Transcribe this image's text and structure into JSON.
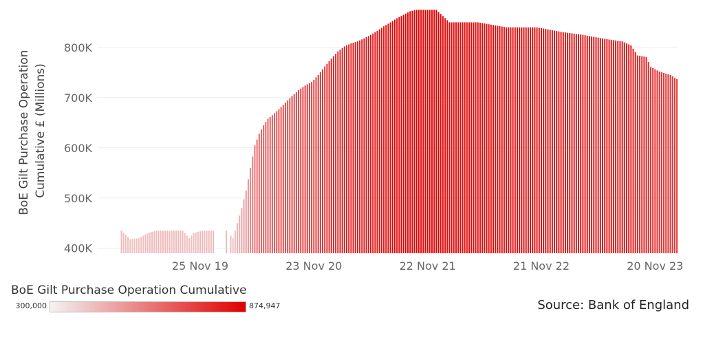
{
  "chart_data": {
    "type": "bar",
    "ylabel_lines": [
      "BoE Gilt Purchase Operation",
      "Cumulative £ (Millions)"
    ],
    "y_ticks": [
      {
        "value": 400000,
        "label": "400K"
      },
      {
        "value": 500000,
        "label": "500K"
      },
      {
        "value": 600000,
        "label": "600K"
      },
      {
        "value": 700000,
        "label": "700K"
      },
      {
        "value": 800000,
        "label": "800K"
      }
    ],
    "ylim": [
      390000,
      878000
    ],
    "x_range": [
      "2019-01-01",
      "2024-01-31"
    ],
    "x_ticks": [
      {
        "date": "2019-11-25",
        "label": "25 Nov 19"
      },
      {
        "date": "2020-11-23",
        "label": "23 Nov 20"
      },
      {
        "date": "2021-11-22",
        "label": "22 Nov 21"
      },
      {
        "date": "2022-11-21",
        "label": "21 Nov 22"
      },
      {
        "date": "2023-11-20",
        "label": "20 Nov 23"
      }
    ],
    "grid": true,
    "color_scale": {
      "min": 300000,
      "max": 874947,
      "min_color": "#f3f3f3",
      "max_color": "#e00000"
    },
    "series": [
      {
        "points": [
          [
            "2019-03-18",
            435000
          ],
          [
            "2019-04-15",
            418000
          ],
          [
            "2019-05-13",
            420000
          ],
          [
            "2019-06-10",
            430000
          ],
          [
            "2019-07-08",
            435000
          ],
          [
            "2019-08-05",
            435000
          ],
          [
            "2019-09-02",
            435000
          ],
          [
            "2019-09-30",
            435000
          ],
          [
            "2019-10-21",
            420000
          ],
          [
            "2019-11-04",
            430000
          ],
          [
            "2019-12-02",
            435000
          ],
          [
            "2020-01-06",
            435000
          ],
          [
            "2020-02-17",
            435000
          ],
          [
            "2020-03-09",
            420000
          ],
          [
            "2020-03-23",
            450000
          ],
          [
            "2020-04-06",
            480000
          ],
          [
            "2020-04-20",
            515000
          ],
          [
            "2020-05-04",
            560000
          ],
          [
            "2020-05-18",
            605000
          ],
          [
            "2020-06-01",
            628000
          ],
          [
            "2020-06-15",
            645000
          ],
          [
            "2020-06-29",
            658000
          ],
          [
            "2020-07-13",
            665000
          ],
          [
            "2020-08-03",
            677000
          ],
          [
            "2020-08-24",
            690000
          ],
          [
            "2020-09-14",
            703000
          ],
          [
            "2020-10-05",
            715000
          ],
          [
            "2020-10-26",
            724000
          ],
          [
            "2020-11-16",
            731000
          ],
          [
            "2020-12-07",
            745000
          ],
          [
            "2020-12-28",
            762000
          ],
          [
            "2021-01-18",
            778000
          ],
          [
            "2021-02-08",
            792000
          ],
          [
            "2021-03-01",
            802000
          ],
          [
            "2021-03-22",
            808000
          ],
          [
            "2021-04-12",
            812000
          ],
          [
            "2021-05-03",
            818000
          ],
          [
            "2021-05-24",
            825000
          ],
          [
            "2021-06-14",
            833000
          ],
          [
            "2021-07-05",
            842000
          ],
          [
            "2021-07-26",
            850000
          ],
          [
            "2021-08-16",
            858000
          ],
          [
            "2021-09-06",
            865000
          ],
          [
            "2021-09-27",
            872000
          ],
          [
            "2021-10-18",
            874947
          ],
          [
            "2021-11-08",
            874947
          ],
          [
            "2021-11-29",
            874947
          ],
          [
            "2021-12-20",
            874947
          ],
          [
            "2022-01-31",
            850000
          ],
          [
            "2022-05-02",
            850000
          ],
          [
            "2022-08-01",
            840000
          ],
          [
            "2022-11-07",
            840000
          ],
          [
            "2023-01-23",
            831000
          ],
          [
            "2023-04-03",
            825000
          ],
          [
            "2023-06-12",
            817000
          ],
          [
            "2023-08-07",
            812000
          ],
          [
            "2023-09-04",
            804000
          ],
          [
            "2023-09-25",
            784000
          ],
          [
            "2023-10-23",
            781000
          ],
          [
            "2023-11-06",
            761000
          ],
          [
            "2023-12-04",
            752000
          ],
          [
            "2024-01-08",
            745000
          ],
          [
            "2024-01-29",
            737000
          ]
        ]
      }
    ],
    "legend": {
      "title": "BoE Gilt Purchase Operation Cumulative",
      "min_label": "300,000",
      "max_label": "874,947",
      "placement": "bottom-left"
    }
  },
  "source_text": "Source: Bank of England"
}
